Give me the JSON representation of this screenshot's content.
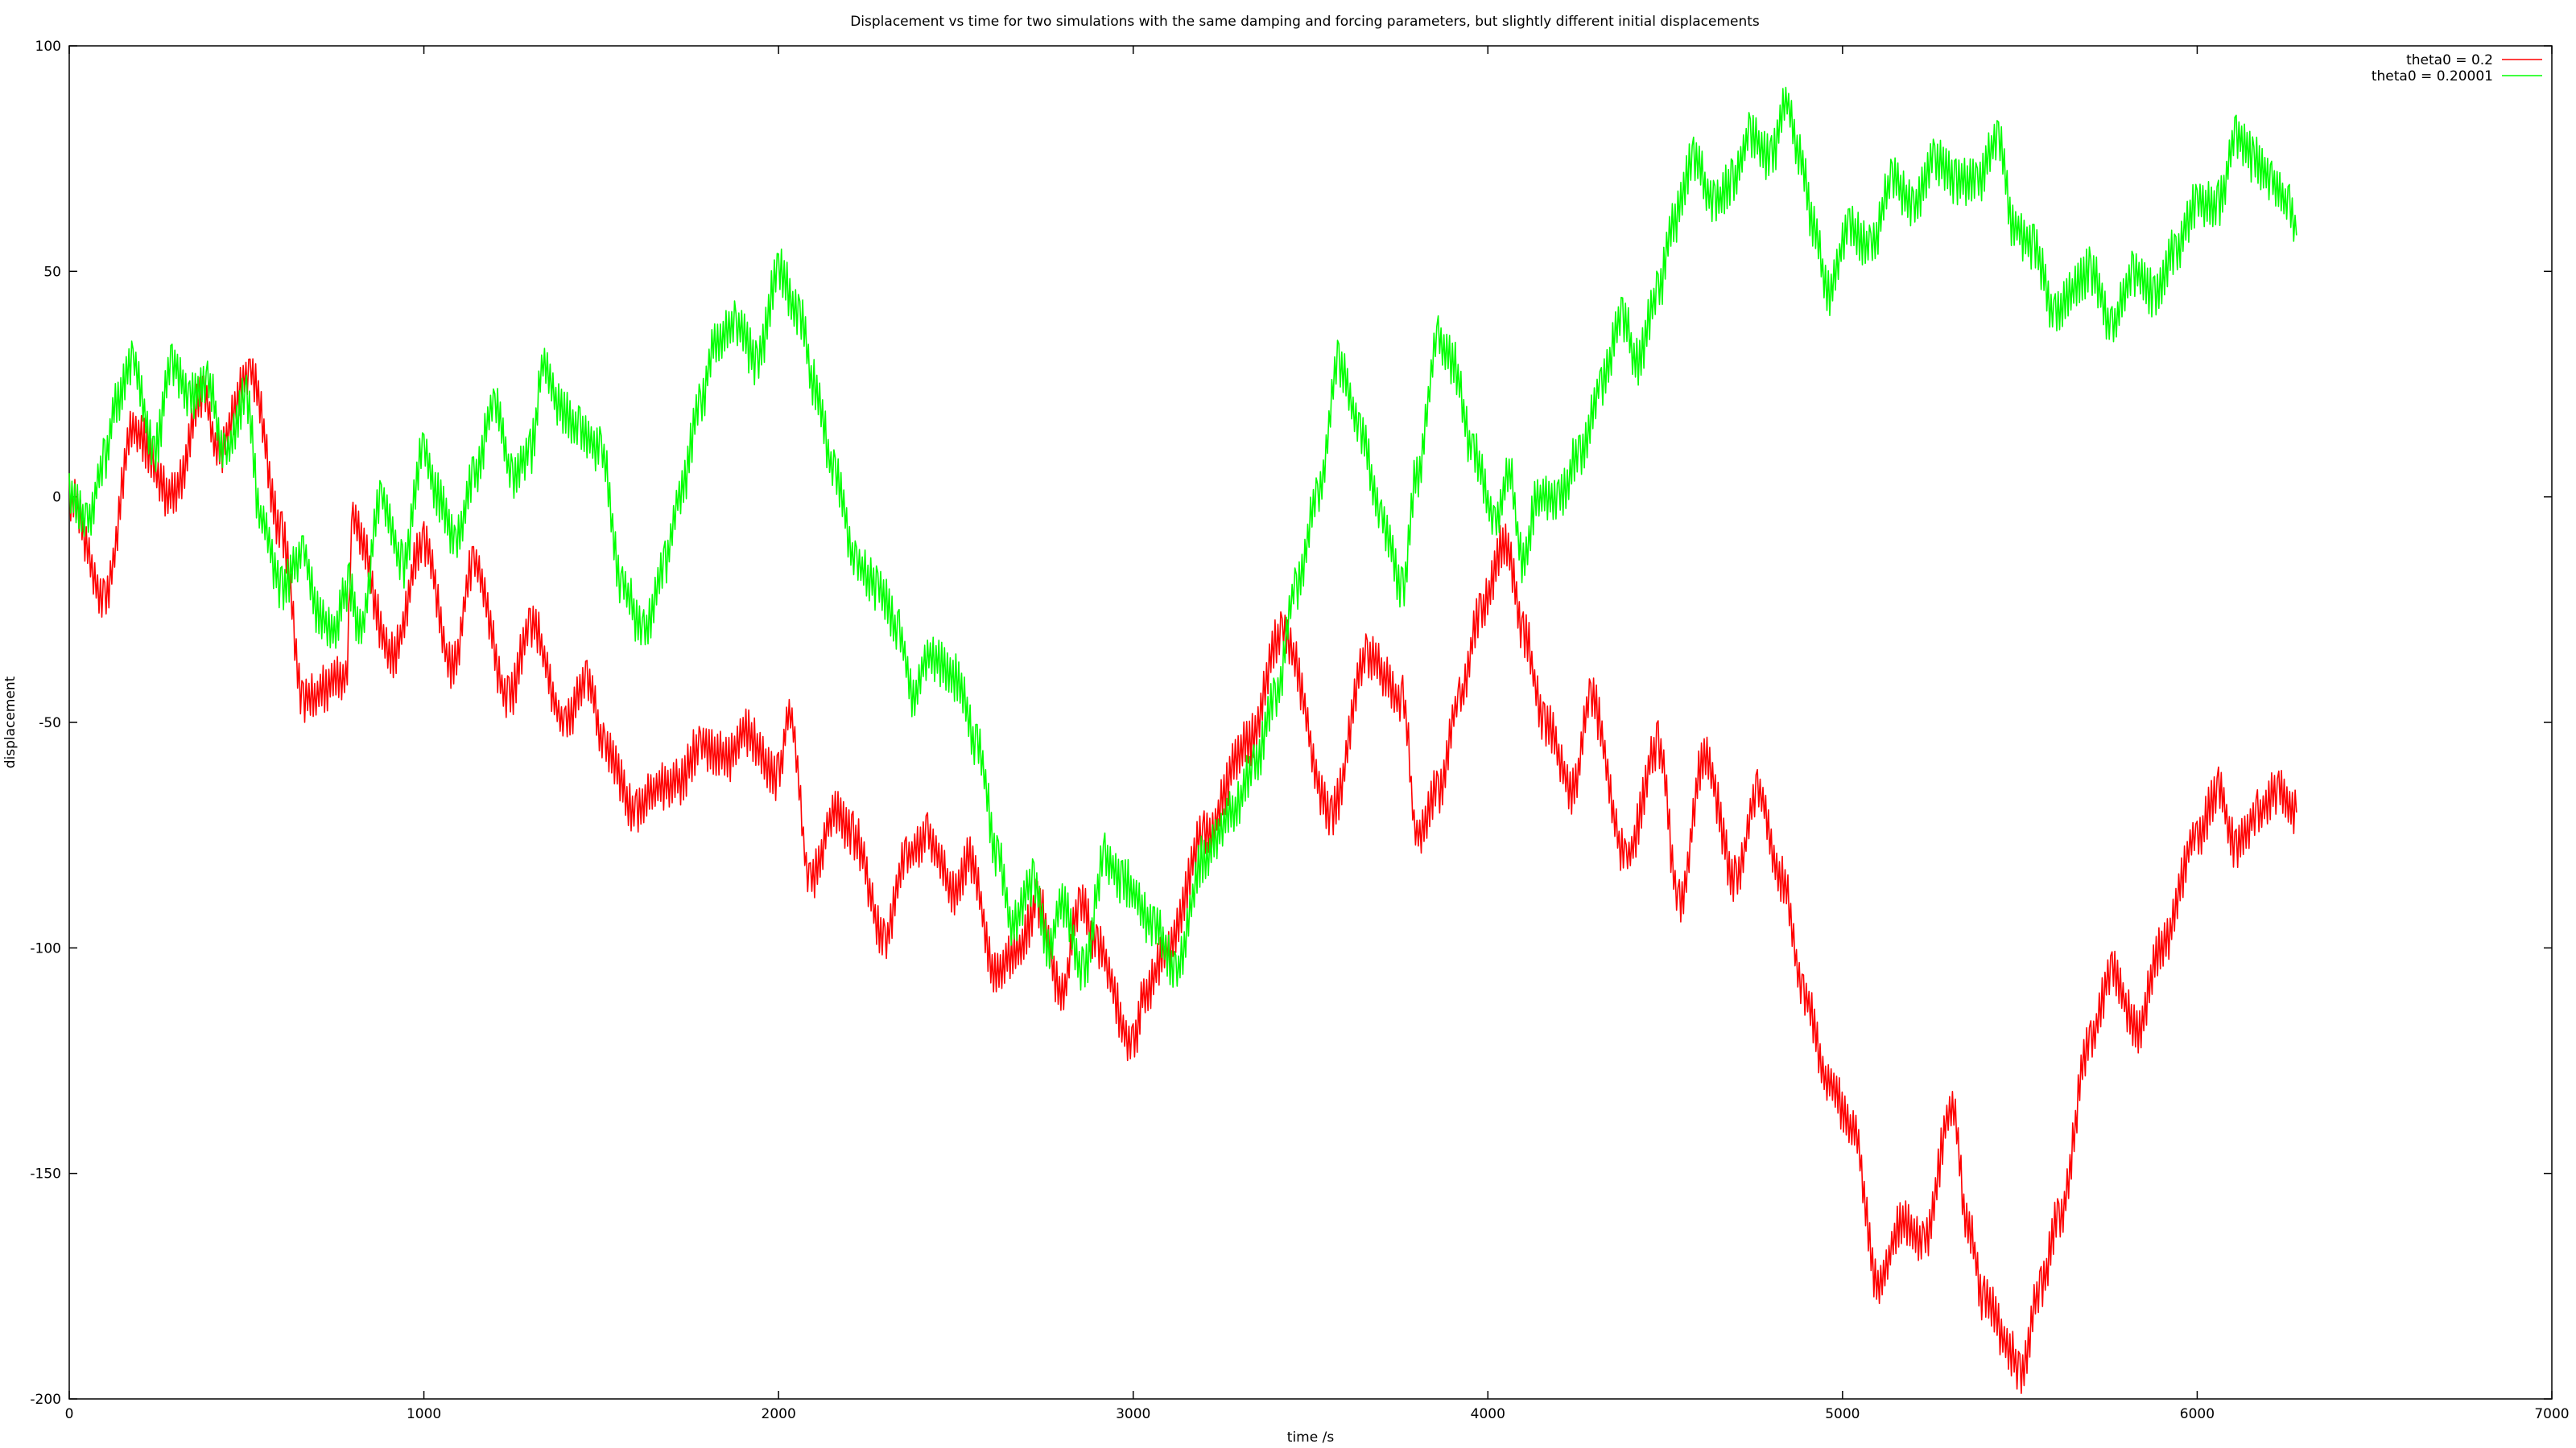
{
  "chart_data": {
    "type": "line",
    "title": "Displacement vs time for two simulations with the same damping and forcing parameters, but slightly different initial displacements",
    "xlabel": "time /s",
    "ylabel": "displacement",
    "xlim": [
      0,
      7000
    ],
    "ylim": [
      -200,
      100
    ],
    "xticks": [
      "0",
      "1000",
      "2000",
      "3000",
      "4000",
      "5000",
      "6000",
      "7000"
    ],
    "yticks": [
      "100",
      "50",
      "0",
      "-50",
      "-100",
      "-150",
      "-200"
    ],
    "xtick_values": [
      0,
      1000,
      2000,
      3000,
      4000,
      5000,
      6000,
      7000
    ],
    "ytick_values": [
      100,
      50,
      0,
      -50,
      -100,
      -150,
      -200
    ],
    "grid": false,
    "legend_position": "top-right",
    "series": [
      {
        "name": "theta0 = 0.2",
        "color": "#ff0000",
        "x": [
          0,
          100,
          180,
          290,
          380,
          420,
          510,
          600,
          660,
          780,
          800,
          910,
          1000,
          1080,
          1140,
          1240,
          1300,
          1400,
          1460,
          1510,
          1600,
          1640,
          1720,
          1780,
          1860,
          1900,
          2000,
          2030,
          2090,
          2160,
          2210,
          2300,
          2360,
          2420,
          2500,
          2540,
          2610,
          2680,
          2730,
          2800,
          2850,
          2900,
          3000,
          3030,
          3100,
          3200,
          3320,
          3420,
          3560,
          3660,
          3760,
          3800,
          3860,
          3920,
          3980,
          4050,
          4100,
          4160,
          4240,
          4290,
          4390,
          4480,
          4540,
          4610,
          4700,
          4760,
          4830,
          4890,
          4960,
          5030,
          5100,
          5170,
          5230,
          5310,
          5350,
          5400,
          5480,
          5500,
          5560,
          5610,
          5700,
          5760,
          5830,
          5900,
          6000,
          6060,
          6110,
          6170,
          6230,
          6280
        ],
        "y": [
          0,
          -22,
          15,
          0,
          22,
          10,
          28,
          -8,
          -45,
          -40,
          -5,
          -35,
          -10,
          -38,
          -15,
          -45,
          -28,
          -50,
          -40,
          -55,
          -70,
          -65,
          -63,
          -55,
          -58,
          -52,
          -62,
          -48,
          -85,
          -70,
          -75,
          -98,
          -80,
          -75,
          -88,
          -80,
          -105,
          -100,
          -90,
          -110,
          -90,
          -100,
          -122,
          -110,
          -100,
          -75,
          -55,
          -30,
          -70,
          -35,
          -45,
          -75,
          -65,
          -45,
          -25,
          -10,
          -30,
          -50,
          -65,
          -45,
          -80,
          -55,
          -90,
          -58,
          -85,
          -65,
          -85,
          -110,
          -130,
          -140,
          -175,
          -160,
          -165,
          -135,
          -160,
          -178,
          -190,
          -195,
          -175,
          -160,
          -120,
          -105,
          -118,
          -100,
          -75,
          -65,
          -78,
          -70,
          -65,
          -70
        ],
        "points": []
      },
      {
        "name": "theta0 = 0.20001",
        "color": "#00ff00",
        "x": [
          0,
          50,
          100,
          130,
          180,
          240,
          290,
          340,
          390,
          440,
          500,
          540,
          600,
          660,
          700,
          740,
          790,
          820,
          880,
          940,
          1000,
          1040,
          1090,
          1140,
          1200,
          1250,
          1300,
          1340,
          1380,
          1440,
          1500,
          1560,
          1620,
          1680,
          1720,
          1780,
          1820,
          1880,
          1940,
          2000,
          2060,
          2100,
          2160,
          2220,
          2280,
          2340,
          2380,
          2420,
          2500,
          2560,
          2620,
          2660,
          2720,
          2760,
          2800,
          2860,
          2920,
          2970,
          3060,
          3120,
          3200,
          3280,
          3340,
          3400,
          3460,
          3520,
          3580,
          3640,
          3700,
          3760,
          3800,
          3860,
          3900,
          3960,
          4020,
          4060,
          4100,
          4140,
          4200,
          4260,
          4320,
          4380,
          4420,
          4480,
          4520,
          4580,
          4640,
          4690,
          4740,
          4800,
          4840,
          4880,
          4920,
          4960,
          5020,
          5080,
          5140,
          5200,
          5260,
          5320,
          5380,
          5440,
          5480,
          5540,
          5600,
          5640,
          5700,
          5760,
          5820,
          5880,
          5940,
          6000,
          6060,
          6110,
          6160,
          6210,
          6260,
          6280
        ],
        "y": [
          0,
          -5,
          8,
          20,
          30,
          10,
          30,
          22,
          25,
          10,
          22,
          -5,
          -20,
          -12,
          -25,
          -30,
          -20,
          -30,
          0,
          -15,
          10,
          0,
          -10,
          5,
          20,
          5,
          10,
          30,
          20,
          15,
          10,
          -20,
          -30,
          -15,
          0,
          20,
          35,
          38,
          30,
          50,
          40,
          25,
          5,
          -15,
          -20,
          -30,
          -45,
          -35,
          -40,
          -55,
          -80,
          -95,
          -85,
          -100,
          -90,
          -105,
          -80,
          -85,
          -95,
          -105,
          -80,
          -70,
          -60,
          -45,
          -20,
          0,
          30,
          15,
          -5,
          -20,
          5,
          35,
          30,
          10,
          -5,
          5,
          -15,
          0,
          0,
          10,
          25,
          40,
          30,
          45,
          60,
          75,
          65,
          70,
          80,
          75,
          88,
          75,
          60,
          45,
          60,
          55,
          70,
          65,
          75,
          70,
          70,
          80,
          60,
          55,
          40,
          45,
          50,
          38,
          50,
          45,
          55,
          65,
          65,
          80,
          75,
          70,
          65,
          58
        ],
        "points": []
      }
    ]
  }
}
